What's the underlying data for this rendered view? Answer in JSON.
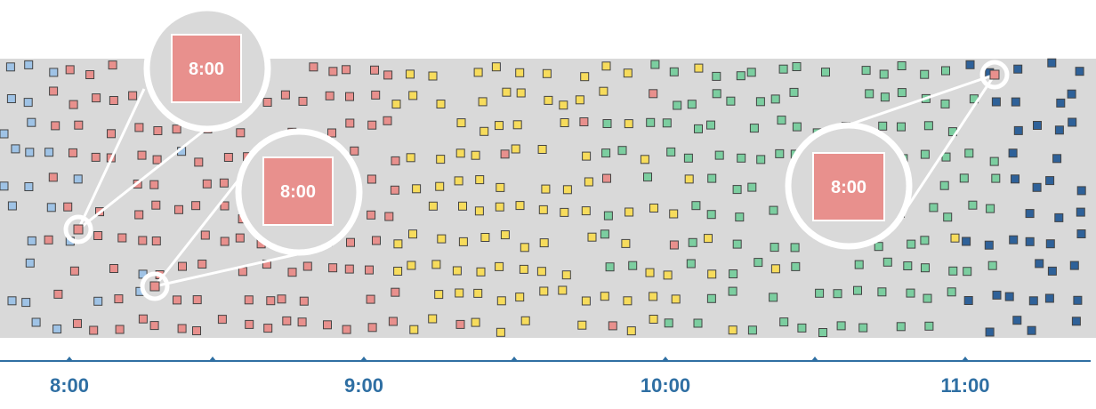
{
  "timeline": {
    "ticks": [
      {
        "label": "8:00",
        "major": true
      },
      {
        "label": "",
        "major": false
      },
      {
        "label": "9:00",
        "major": true
      },
      {
        "label": "",
        "major": false
      },
      {
        "label": "10:00",
        "major": true
      },
      {
        "label": "",
        "major": false
      },
      {
        "label": "11:00",
        "major": true
      }
    ]
  },
  "callouts": [
    {
      "label": "8:00"
    },
    {
      "label": "8:00"
    },
    {
      "label": "8:00"
    }
  ],
  "colors": {
    "band": "#d9d9d9",
    "axis": "#2f6fa3",
    "blue_light": "#9fc3e6",
    "red": "#e8908d",
    "yellow": "#f7dc5c",
    "green": "#7ccea0",
    "blue_dark": "#2e6199",
    "callout_fill": "#e8908d",
    "outline": "#444444"
  }
}
